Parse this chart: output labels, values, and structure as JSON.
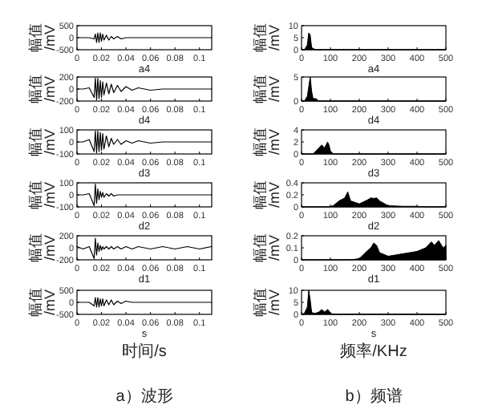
{
  "chart_data": [
    {
      "type": "line",
      "title": "a4",
      "ylabel": "幅值/mV",
      "xlim": [
        0,
        0.11
      ],
      "ylim": [
        -500,
        500
      ],
      "xticks": [
        0,
        0.02,
        0.04,
        0.06,
        0.08,
        0.1
      ],
      "yticks": [
        -500,
        0,
        500
      ],
      "x": [
        0,
        0.005,
        0.01,
        0.014,
        0.015,
        0.016,
        0.017,
        0.018,
        0.019,
        0.02,
        0.021,
        0.022,
        0.024,
        0.026,
        0.028,
        0.03,
        0.033,
        0.036,
        0.04,
        0.045,
        0.05,
        0.06,
        0.07,
        0.08,
        0.09,
        0.1,
        0.11
      ],
      "series": [
        {
          "color": "#000000",
          "values": [
            0,
            0,
            0,
            -50,
            150,
            -200,
            200,
            -200,
            200,
            -150,
            150,
            -100,
            100,
            -100,
            50,
            -50,
            50,
            -50,
            0,
            0,
            0,
            0,
            0,
            0,
            0,
            0,
            0
          ]
        }
      ]
    },
    {
      "type": "line",
      "title": "d4",
      "ylabel": "幅值/mV",
      "xlim": [
        0,
        0.11
      ],
      "ylim": [
        -200,
        200
      ],
      "xticks": [
        0,
        0.02,
        0.04,
        0.06,
        0.08,
        0.1
      ],
      "yticks": [
        -200,
        0,
        200
      ],
      "x": [
        0,
        0.005,
        0.01,
        0.014,
        0.015,
        0.016,
        0.017,
        0.018,
        0.019,
        0.02,
        0.021,
        0.022,
        0.024,
        0.026,
        0.028,
        0.03,
        0.033,
        0.036,
        0.04,
        0.045,
        0.05,
        0.06,
        0.07,
        0.08,
        0.09,
        0.1,
        0.11
      ],
      "series": [
        {
          "color": "#000000",
          "values": [
            0,
            0,
            20,
            -140,
            180,
            -180,
            180,
            -160,
            140,
            -140,
            120,
            -100,
            100,
            -80,
            80,
            -60,
            60,
            -40,
            40,
            -20,
            20,
            -20,
            0,
            0,
            0,
            0,
            0
          ]
        }
      ]
    },
    {
      "type": "line",
      "title": "d3",
      "ylabel": "幅值/mV",
      "xlim": [
        0,
        0.11
      ],
      "ylim": [
        -100,
        100
      ],
      "xticks": [
        0,
        0.02,
        0.04,
        0.06,
        0.08,
        0.1
      ],
      "yticks": [
        -100,
        0,
        100
      ],
      "x": [
        0,
        0.005,
        0.01,
        0.014,
        0.015,
        0.016,
        0.017,
        0.018,
        0.019,
        0.02,
        0.021,
        0.022,
        0.024,
        0.026,
        0.028,
        0.03,
        0.033,
        0.036,
        0.04,
        0.045,
        0.05,
        0.06,
        0.07,
        0.08,
        0.09,
        0.1,
        0.11
      ],
      "series": [
        {
          "color": "#000000",
          "values": [
            0,
            0,
            20,
            -80,
            90,
            -90,
            90,
            -80,
            80,
            -70,
            70,
            -60,
            50,
            -40,
            30,
            -20,
            20,
            -20,
            10,
            -10,
            10,
            -10,
            0,
            0,
            0,
            0,
            0
          ]
        }
      ]
    },
    {
      "type": "line",
      "title": "d2",
      "ylabel": "幅值/mV",
      "xlim": [
        0,
        0.11
      ],
      "ylim": [
        -100,
        100
      ],
      "xticks": [
        0,
        0.02,
        0.04,
        0.06,
        0.08,
        0.1
      ],
      "yticks": [
        -100,
        0,
        100
      ],
      "x": [
        0,
        0.005,
        0.01,
        0.014,
        0.015,
        0.016,
        0.017,
        0.018,
        0.019,
        0.02,
        0.021,
        0.022,
        0.024,
        0.026,
        0.028,
        0.03,
        0.033,
        0.036,
        0.04,
        0.045,
        0.05,
        0.06,
        0.07,
        0.08,
        0.09,
        0.1,
        0.11
      ],
      "series": [
        {
          "color": "#000000",
          "values": [
            0,
            0,
            10,
            -90,
            90,
            -70,
            50,
            -40,
            30,
            -20,
            20,
            -20,
            10,
            -10,
            10,
            -10,
            0,
            0,
            0,
            0,
            0,
            0,
            0,
            0,
            0,
            0,
            0
          ]
        }
      ]
    },
    {
      "type": "line",
      "title": "d1",
      "ylabel": "幅值/mV",
      "xlim": [
        0,
        0.11
      ],
      "ylim": [
        -200,
        200
      ],
      "xticks": [
        0,
        0.02,
        0.04,
        0.06,
        0.08,
        0.1
      ],
      "yticks": [
        -200,
        0,
        200
      ],
      "x": [
        0,
        0.005,
        0.01,
        0.014,
        0.015,
        0.016,
        0.017,
        0.018,
        0.019,
        0.02,
        0.021,
        0.022,
        0.024,
        0.026,
        0.028,
        0.03,
        0.033,
        0.036,
        0.04,
        0.045,
        0.05,
        0.06,
        0.07,
        0.08,
        0.09,
        0.1,
        0.11
      ],
      "series": [
        {
          "color": "#000000",
          "values": [
            20,
            -20,
            20,
            -180,
            160,
            -120,
            80,
            -60,
            40,
            -40,
            20,
            -20,
            20,
            -20,
            20,
            -20,
            20,
            -20,
            20,
            -20,
            20,
            -20,
            20,
            -20,
            20,
            -20,
            20
          ]
        }
      ]
    },
    {
      "type": "line",
      "title": "s",
      "xlabel": "时间/s",
      "ylabel": "幅值/mV",
      "annotations": [
        "a）波形"
      ],
      "xlim": [
        0,
        0.11
      ],
      "ylim": [
        -500,
        500
      ],
      "xticks": [
        0,
        0.02,
        0.04,
        0.06,
        0.08,
        0.1
      ],
      "yticks": [
        -500,
        0,
        500
      ],
      "x": [
        0,
        0.005,
        0.01,
        0.014,
        0.015,
        0.016,
        0.017,
        0.018,
        0.019,
        0.02,
        0.021,
        0.022,
        0.024,
        0.026,
        0.028,
        0.03,
        0.033,
        0.036,
        0.04,
        0.045,
        0.05,
        0.06,
        0.07,
        0.08,
        0.09,
        0.1,
        0.11
      ],
      "series": [
        {
          "color": "#000000",
          "values": [
            0,
            0,
            0,
            -150,
            200,
            -200,
            200,
            -200,
            150,
            -150,
            150,
            -150,
            100,
            -100,
            100,
            -100,
            50,
            -50,
            50,
            0,
            0,
            0,
            0,
            0,
            0,
            0,
            0
          ]
        }
      ]
    },
    {
      "type": "area",
      "title": "a4",
      "ylabel": "幅值/mV",
      "xlim": [
        0,
        500
      ],
      "ylim": [
        0,
        10
      ],
      "xticks": [
        0,
        100,
        200,
        300,
        400,
        500
      ],
      "yticks": [
        0,
        5,
        10
      ],
      "x": [
        0,
        10,
        20,
        25,
        30,
        35,
        40,
        50,
        60,
        70,
        80,
        90,
        95,
        100,
        110,
        130,
        150,
        160,
        170,
        200,
        230,
        240,
        250,
        260,
        270,
        300,
        350,
        400,
        430,
        450,
        460,
        475,
        490,
        500
      ],
      "series": [
        {
          "color": "#000000",
          "values": [
            0,
            0,
            2,
            7,
            6,
            1,
            0.5,
            0,
            0,
            0,
            0,
            0,
            0,
            0,
            0,
            0,
            0,
            0,
            0,
            0,
            0,
            0,
            0,
            0,
            0,
            0,
            0,
            0,
            0,
            0,
            0,
            0,
            0,
            0
          ]
        }
      ]
    },
    {
      "type": "area",
      "title": "d4",
      "ylabel": "幅值/mV",
      "xlim": [
        0,
        500
      ],
      "ylim": [
        0,
        5
      ],
      "xticks": [
        0,
        100,
        200,
        300,
        400,
        500
      ],
      "yticks": [
        0,
        5
      ],
      "x": [
        0,
        10,
        20,
        25,
        30,
        35,
        40,
        50,
        60,
        70,
        80,
        90,
        95,
        100,
        110,
        130,
        150,
        160,
        170,
        200,
        230,
        240,
        250,
        260,
        270,
        300,
        350,
        400,
        430,
        450,
        460,
        475,
        490,
        500
      ],
      "series": [
        {
          "color": "#000000",
          "values": [
            0,
            0,
            1,
            3,
            5,
            2,
            0.5,
            0.5,
            0,
            0,
            0,
            0,
            0,
            0,
            0,
            0,
            0,
            0,
            0,
            0,
            0,
            0,
            0,
            0,
            0,
            0,
            0,
            0,
            0,
            0,
            0,
            0,
            0,
            0
          ]
        }
      ]
    },
    {
      "type": "area",
      "title": "d3",
      "ylabel": "幅值/mV",
      "xlim": [
        0,
        500
      ],
      "ylim": [
        0,
        4
      ],
      "xticks": [
        0,
        100,
        200,
        300,
        400,
        500
      ],
      "yticks": [
        0,
        2,
        4
      ],
      "x": [
        0,
        10,
        20,
        25,
        30,
        35,
        40,
        50,
        60,
        70,
        80,
        90,
        95,
        100,
        110,
        130,
        150,
        160,
        170,
        200,
        230,
        240,
        250,
        260,
        270,
        300,
        350,
        400,
        430,
        450,
        460,
        475,
        490,
        500
      ],
      "series": [
        {
          "color": "#000000",
          "values": [
            0,
            0,
            0,
            0,
            0,
            0,
            0,
            0.5,
            1,
            1.5,
            1,
            2,
            1.5,
            0.5,
            0,
            0,
            0,
            0,
            0,
            0,
            0,
            0,
            0,
            0,
            0,
            0,
            0,
            0,
            0,
            0,
            0,
            0,
            0,
            0
          ]
        }
      ]
    },
    {
      "type": "area",
      "title": "d2",
      "ylabel": "幅值/mV",
      "xlim": [
        0,
        500
      ],
      "ylim": [
        0,
        0.4
      ],
      "xticks": [
        0,
        100,
        200,
        300,
        400,
        500
      ],
      "yticks": [
        0,
        0.2,
        0.4
      ],
      "x": [
        0,
        10,
        20,
        25,
        30,
        35,
        40,
        50,
        60,
        70,
        80,
        90,
        95,
        100,
        110,
        130,
        150,
        160,
        170,
        200,
        230,
        240,
        250,
        260,
        270,
        300,
        350,
        400,
        430,
        450,
        460,
        475,
        490,
        500
      ],
      "series": [
        {
          "color": "#000000",
          "values": [
            0,
            0,
            0,
            0,
            0,
            0,
            0,
            0,
            0,
            0,
            0,
            0,
            0,
            0.01,
            0.02,
            0.1,
            0.15,
            0.25,
            0.1,
            0.05,
            0.12,
            0.15,
            0.14,
            0.15,
            0.1,
            0.02,
            0.01,
            0.01,
            0,
            0,
            0,
            0,
            0,
            0
          ]
        }
      ]
    },
    {
      "type": "area",
      "title": "d1",
      "ylabel": "幅值/mV",
      "xlim": [
        0,
        500
      ],
      "ylim": [
        0,
        0.2
      ],
      "xticks": [
        0,
        100,
        200,
        300,
        400,
        500
      ],
      "yticks": [
        0,
        0.1,
        0.2
      ],
      "x": [
        0,
        10,
        20,
        25,
        30,
        35,
        40,
        50,
        60,
        70,
        80,
        90,
        95,
        100,
        110,
        130,
        150,
        160,
        170,
        200,
        230,
        240,
        250,
        260,
        270,
        300,
        350,
        400,
        430,
        450,
        460,
        475,
        490,
        500
      ],
      "series": [
        {
          "color": "#000000",
          "values": [
            0,
            0,
            0,
            0,
            0,
            0,
            0,
            0,
            0,
            0,
            0,
            0,
            0,
            0,
            0,
            0,
            0,
            0,
            0,
            0.01,
            0.08,
            0.1,
            0.14,
            0.12,
            0.06,
            0.03,
            0.05,
            0.07,
            0.1,
            0.15,
            0.12,
            0.16,
            0.1,
            0.12
          ]
        }
      ]
    },
    {
      "type": "area",
      "title": "s",
      "xlabel": "频率/KHz",
      "ylabel": "幅值/mV",
      "annotations": [
        "b）频谱"
      ],
      "xlim": [
        0,
        500
      ],
      "ylim": [
        0,
        10
      ],
      "xticks": [
        0,
        100,
        200,
        300,
        400,
        500
      ],
      "yticks": [
        0,
        5,
        10
      ],
      "x": [
        0,
        10,
        20,
        25,
        30,
        35,
        40,
        50,
        60,
        70,
        80,
        90,
        95,
        100,
        110,
        130,
        150,
        160,
        170,
        200,
        230,
        240,
        250,
        260,
        270,
        300,
        350,
        400,
        430,
        450,
        460,
        475,
        490,
        500
      ],
      "series": [
        {
          "color": "#000000",
          "values": [
            0,
            0.5,
            3,
            10,
            6,
            1,
            0.5,
            0.5,
            1,
            2,
            1,
            2,
            1.5,
            0.5,
            0,
            0,
            0,
            0,
            0,
            0,
            0,
            0,
            0,
            0,
            0,
            0,
            0,
            0,
            0,
            0,
            0,
            0,
            0,
            0
          ]
        }
      ]
    }
  ]
}
